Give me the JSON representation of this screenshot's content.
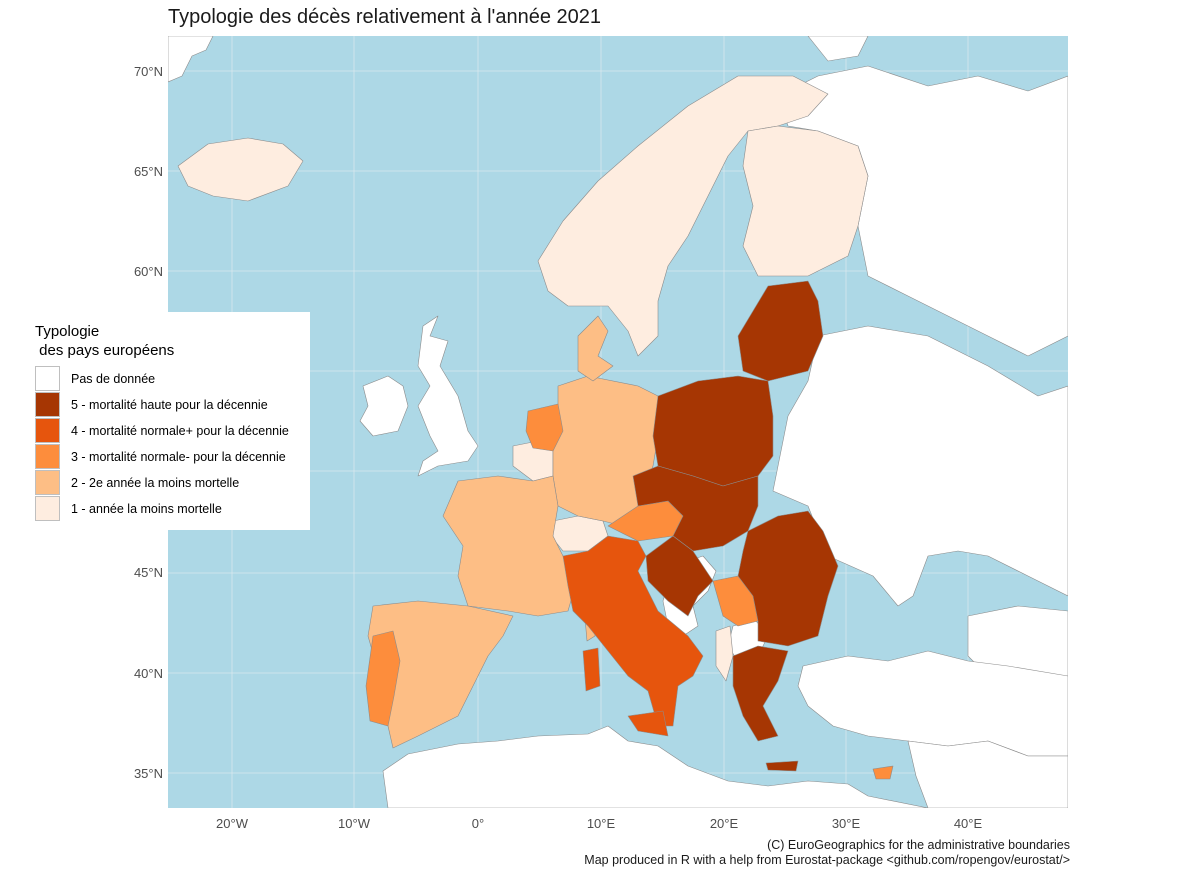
{
  "title": "Typologie des décès relativement à l'année 2021",
  "axes": {
    "y_ticks": [
      "70°N",
      "65°N",
      "60°N",
      "45°N",
      "40°N",
      "35°N"
    ],
    "x_ticks": [
      "20°W",
      "10°W",
      "0°",
      "10°E",
      "20°E",
      "30°E",
      "40°E"
    ]
  },
  "legend": {
    "title_line1": "Typologie",
    "title_line2": " des pays européens",
    "items": [
      {
        "label": "Pas de donnée",
        "color": "#ffffff"
      },
      {
        "label": "5 - mortalité haute pour la décennie",
        "color": "#a63603"
      },
      {
        "label": "4 - mortalité normale+ pour la décennie",
        "color": "#e6550d"
      },
      {
        "label": "3 - mortalité normale- pour la décennie",
        "color": "#fd8d3c"
      },
      {
        "label": "2 - 2e année la moins mortelle",
        "color": "#fdbe85"
      },
      {
        "label": "1 - année la moins mortelle",
        "color": "#feede0"
      }
    ]
  },
  "captions": {
    "line1": "(C) EuroGeographics for the administrative boundaries",
    "line2": "Map produced in R with a help from Eurostat-package <github.com/ropengov/eurostat/>"
  },
  "colors": {
    "sea": "#add8e6",
    "grid": "#d9e9ee",
    "no_data": "#ffffff",
    "border": "#8c8c8c"
  }
}
